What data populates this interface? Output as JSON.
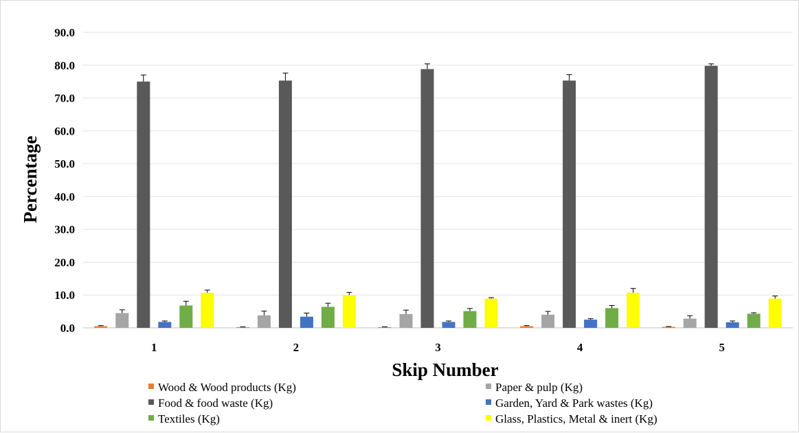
{
  "chart_data": {
    "type": "bar",
    "title": "",
    "xlabel": "Skip Number",
    "ylabel": "Percentage",
    "ylim": [
      0,
      90
    ],
    "yticks": [
      "0.0",
      "10.0",
      "20.0",
      "30.0",
      "40.0",
      "50.0",
      "60.0",
      "70.0",
      "80.0",
      "90.0"
    ],
    "categories": [
      "1",
      "2",
      "3",
      "4",
      "5"
    ],
    "grid": true,
    "legend_position": "bottom",
    "series": [
      {
        "name": "Wood & Wood products (Kg)",
        "color": "#ed7d31",
        "values": [
          0.5,
          0.2,
          0.2,
          0.5,
          0.3
        ],
        "errors": [
          0.2,
          0.1,
          0.1,
          0.2,
          0.1
        ]
      },
      {
        "name": "Paper & pulp (Kg)",
        "color": "#a5a5a5",
        "values": [
          4.5,
          3.8,
          4.2,
          4.0,
          2.8
        ],
        "errors": [
          1.0,
          1.3,
          1.2,
          1.0,
          0.9
        ]
      },
      {
        "name": "Food & food waste (Kg)",
        "color": "#595959",
        "values": [
          75.0,
          75.3,
          78.8,
          75.3,
          79.8
        ],
        "errors": [
          2.0,
          2.3,
          1.6,
          1.8,
          0.6
        ]
      },
      {
        "name": "Garden, Yard & Park wastes (Kg)",
        "color": "#4472c4",
        "values": [
          1.8,
          3.4,
          1.8,
          2.5,
          1.7
        ],
        "errors": [
          0.3,
          1.1,
          0.3,
          0.3,
          0.4
        ]
      },
      {
        "name": "Textiles (Kg)",
        "color": "#70ad47",
        "values": [
          6.8,
          6.4,
          5.1,
          6.0,
          4.3
        ],
        "errors": [
          1.3,
          1.1,
          0.8,
          0.8,
          0.3
        ]
      },
      {
        "name": "Glass, Plastics, Metal & inert (Kg)",
        "color": "#ffff00",
        "values": [
          10.7,
          10.0,
          8.9,
          10.7,
          8.9
        ],
        "errors": [
          0.8,
          0.8,
          0.3,
          1.3,
          0.8
        ]
      }
    ]
  }
}
